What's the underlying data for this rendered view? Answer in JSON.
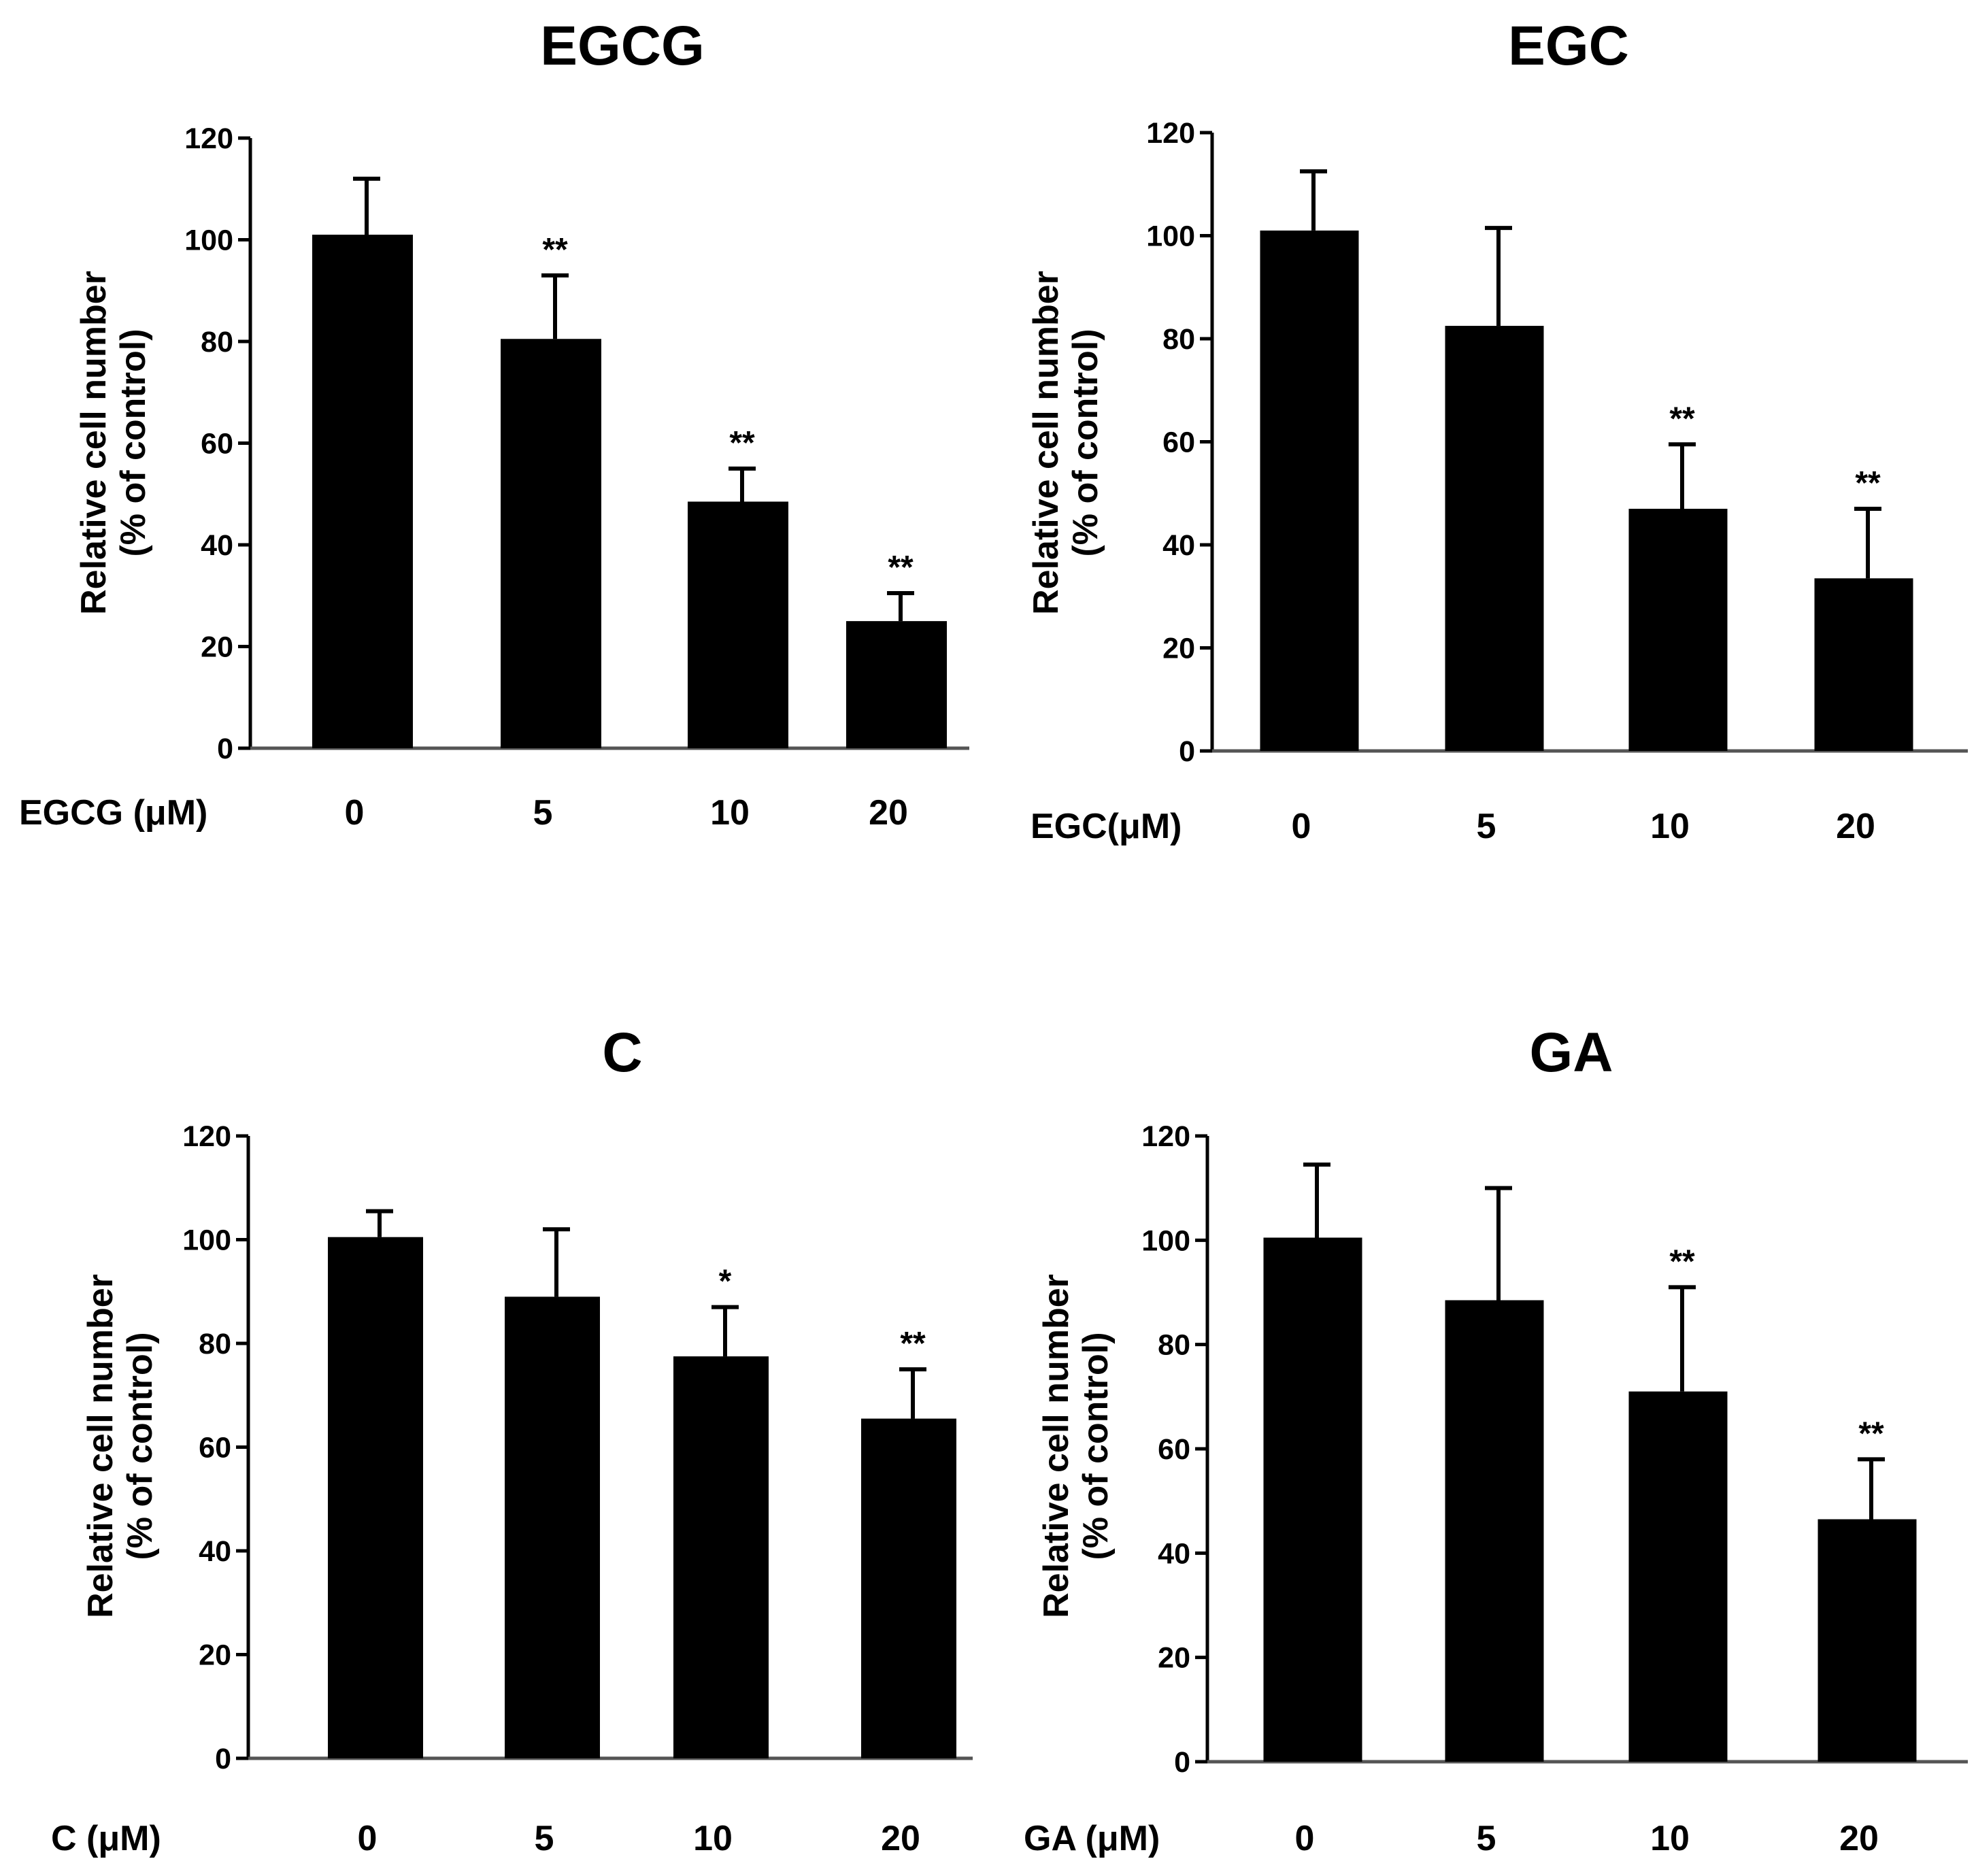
{
  "chart_data": [
    {
      "type": "bar",
      "title": "EGCG",
      "xlabel": "EGCG (μM)",
      "ylabel_lines": [
        "Relative cell number",
        "(% of control)"
      ],
      "categories": [
        "0",
        "5",
        "10",
        "20"
      ],
      "values": [
        101,
        80.5,
        48.5,
        25
      ],
      "errors": [
        11,
        12.5,
        6.5,
        5.5
      ],
      "significance": [
        "",
        "**",
        "**",
        "**"
      ],
      "ylim": [
        0,
        120
      ],
      "yticks": [
        0,
        20,
        40,
        60,
        80,
        100,
        120
      ]
    },
    {
      "type": "bar",
      "title": "EGC",
      "xlabel": "EGC(μM)",
      "ylabel_lines": [
        "Relative cell number",
        "(% of control)"
      ],
      "categories": [
        "0",
        "5",
        "10",
        "20"
      ],
      "values": [
        101,
        82.5,
        47,
        33.5
      ],
      "errors": [
        11.5,
        19,
        12.5,
        13.5
      ],
      "significance": [
        "",
        "",
        "**",
        "**"
      ],
      "ylim": [
        0,
        120
      ],
      "yticks": [
        0,
        20,
        40,
        60,
        80,
        100,
        120
      ]
    },
    {
      "type": "bar",
      "title": "C",
      "xlabel": "C (μM)",
      "ylabel_lines": [
        "Relative cell number",
        "(% of control)"
      ],
      "categories": [
        "0",
        "5",
        "10",
        "20"
      ],
      "values": [
        100.5,
        89,
        77.5,
        65.5
      ],
      "errors": [
        5,
        13,
        9.5,
        9.5
      ],
      "significance": [
        "",
        "",
        "*",
        "**"
      ],
      "ylim": [
        0,
        120
      ],
      "yticks": [
        0,
        20,
        40,
        60,
        80,
        100,
        120
      ]
    },
    {
      "type": "bar",
      "title": "GA",
      "xlabel": "GA (μM)",
      "ylabel_lines": [
        "Relative cell number",
        "(% of control)"
      ],
      "categories": [
        "0",
        "5",
        "10",
        "20"
      ],
      "values": [
        100.5,
        88.5,
        71,
        46.5
      ],
      "errors": [
        14,
        21.5,
        20,
        11.5
      ],
      "significance": [
        "",
        "",
        "**",
        "**"
      ],
      "ylim": [
        0,
        120
      ],
      "yticks": [
        0,
        20,
        40,
        60,
        80,
        100,
        120
      ]
    }
  ]
}
